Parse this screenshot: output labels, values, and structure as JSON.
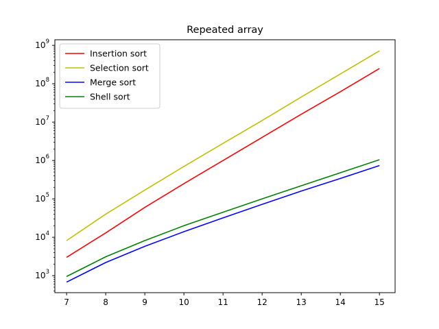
{
  "chart_data": {
    "type": "line",
    "title": "Repeated array",
    "xlabel": "",
    "ylabel": "",
    "yscale": "log",
    "xlim": [
      6.7,
      15.4
    ],
    "ylim": [
      360,
      1400000000
    ],
    "grid": false,
    "legend_position": "top-left",
    "x": [
      7,
      8,
      9,
      10,
      11,
      12,
      13,
      14,
      15
    ],
    "x_tick_labels": [
      "7",
      "8",
      "9",
      "10",
      "11",
      "12",
      "13",
      "14",
      "15"
    ],
    "y_ticks": [
      {
        "value": 1000,
        "base": "10",
        "exp": "3"
      },
      {
        "value": 10000,
        "base": "10",
        "exp": "4"
      },
      {
        "value": 100000,
        "base": "10",
        "exp": "5"
      },
      {
        "value": 1000000,
        "base": "10",
        "exp": "6"
      },
      {
        "value": 10000000,
        "base": "10",
        "exp": "7"
      },
      {
        "value": 100000000,
        "base": "10",
        "exp": "8"
      },
      {
        "value": 1000000000,
        "base": "10",
        "exp": "9"
      }
    ],
    "series": [
      {
        "name": "Insertion sort",
        "color": "#ff0000",
        "values": [
          3000,
          13000,
          60000,
          250000,
          1000000,
          4000000,
          16000000,
          62000000,
          250000000
        ]
      },
      {
        "name": "Selection sort",
        "color": "#bfbf00",
        "values": [
          8200,
          40000,
          170000,
          700000,
          2800000,
          11000000,
          45000000,
          180000000,
          720000000
        ]
      },
      {
        "name": "Merge sort",
        "color": "#0000ff",
        "values": [
          680,
          2200,
          5800,
          14000,
          32000,
          72000,
          160000,
          340000,
          740000
        ]
      },
      {
        "name": "Shell sort",
        "color": "#008000",
        "values": [
          950,
          3100,
          8200,
          20000,
          45000,
          100000,
          220000,
          480000,
          1050000
        ]
      }
    ]
  }
}
